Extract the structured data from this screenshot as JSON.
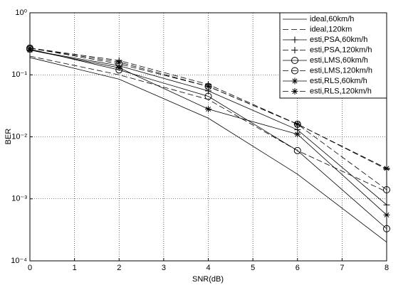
{
  "chart_data": {
    "type": "line",
    "xlabel": "SNR(dB)",
    "ylabel": "BER",
    "x": [
      0,
      2,
      4,
      6,
      8
    ],
    "xlim": [
      0,
      8
    ],
    "xticks": [
      0,
      1,
      2,
      3,
      4,
      5,
      6,
      7,
      8
    ],
    "ylim": [
      0.0001,
      1
    ],
    "ylog": true,
    "yticks": [
      {
        "value": 0.0001,
        "label": "10⁻⁴"
      },
      {
        "value": 0.001,
        "label": "10⁻³"
      },
      {
        "value": 0.01,
        "label": "10⁻²"
      },
      {
        "value": 0.1,
        "label": "10⁻¹"
      },
      {
        "value": 1,
        "label": "10⁰"
      }
    ],
    "grid": true,
    "legend": "upper right",
    "series": [
      {
        "name": "ideal,60km/h",
        "color": "#000000",
        "dash": "solid",
        "marker": "none",
        "values": [
          0.19,
          0.085,
          0.02,
          0.0025,
          0.0002
        ]
      },
      {
        "name": "ideal,120km",
        "color": "#000000",
        "dash": "dashed",
        "marker": "none",
        "values": [
          0.2,
          0.1,
          0.04,
          0.006,
          0.0013
        ]
      },
      {
        "name": "esti,PSA,60km/h",
        "color": "#000000",
        "dash": "solid",
        "marker": "plus",
        "values": [
          0.25,
          0.14,
          0.055,
          0.013,
          0.0008
        ]
      },
      {
        "name": "esti,PSA,120km/h",
        "color": "#000000",
        "dash": "dashed",
        "marker": "plus",
        "values": [
          0.27,
          0.17,
          0.07,
          0.016,
          0.003
        ]
      },
      {
        "name": "esti,LMS,60km/h",
        "color": "#000000",
        "dash": "solid",
        "marker": "circle",
        "values": [
          0.26,
          0.12,
          0.045,
          0.006,
          0.00033
        ]
      },
      {
        "name": "esti,LMS,120km/h",
        "color": "#000000",
        "dash": "dashed",
        "marker": "circle",
        "values": [
          0.27,
          0.15,
          0.065,
          0.016,
          0.0014
        ]
      },
      {
        "name": "esti,RLS,60km/h",
        "color": "#000000",
        "dash": "solid",
        "marker": "star",
        "values": [
          0.25,
          0.13,
          0.028,
          0.011,
          0.00055
        ]
      },
      {
        "name": "esti,RLS,120km/h",
        "color": "#000000",
        "dash": "dashed",
        "marker": "star",
        "values": [
          0.27,
          0.16,
          0.065,
          0.016,
          0.0031
        ]
      }
    ]
  }
}
